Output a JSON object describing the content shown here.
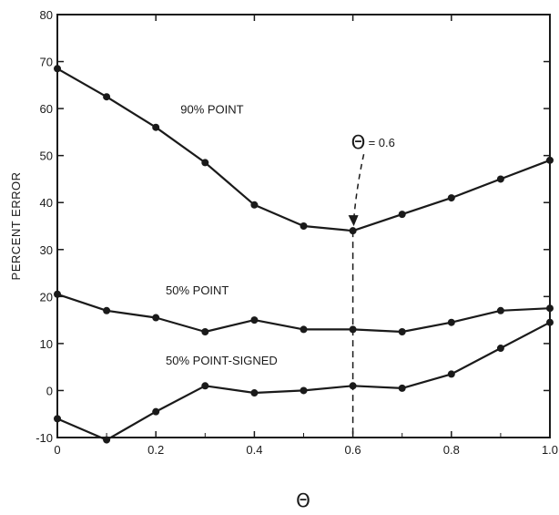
{
  "chart_data": {
    "type": "line",
    "xlabel": "Θ",
    "ylabel": "PERCENT ERROR",
    "xlim": [
      0,
      1.0
    ],
    "ylim": [
      -10,
      80
    ],
    "x_ticks": [
      "0",
      "0.2",
      "0.4",
      "0.6",
      "0.8",
      "1.0"
    ],
    "y_ticks": [
      "-10",
      "0",
      "10",
      "20",
      "30",
      "40",
      "50",
      "60",
      "70",
      "80"
    ],
    "x": [
      0,
      0.1,
      0.2,
      0.3,
      0.4,
      0.5,
      0.6,
      0.7,
      0.8,
      0.9,
      1.0
    ],
    "series": [
      {
        "name": "90% POINT",
        "values": [
          68.5,
          62.5,
          56,
          48.5,
          39.5,
          35,
          34,
          37.5,
          41,
          45,
          49
        ]
      },
      {
        "name": "50% POINT",
        "values": [
          20.5,
          17,
          15.5,
          12.5,
          15,
          13,
          13,
          12.5,
          14.5,
          17,
          17.5
        ]
      },
      {
        "name": "50% POINT-SIGNED",
        "values": [
          -6,
          -10.5,
          -4.5,
          1,
          -0.5,
          0,
          1,
          0.5,
          3.5,
          9,
          14.5
        ]
      }
    ],
    "annotation": {
      "text": "= 0.6",
      "x": 0.6
    },
    "grid": false,
    "legend": "none"
  }
}
